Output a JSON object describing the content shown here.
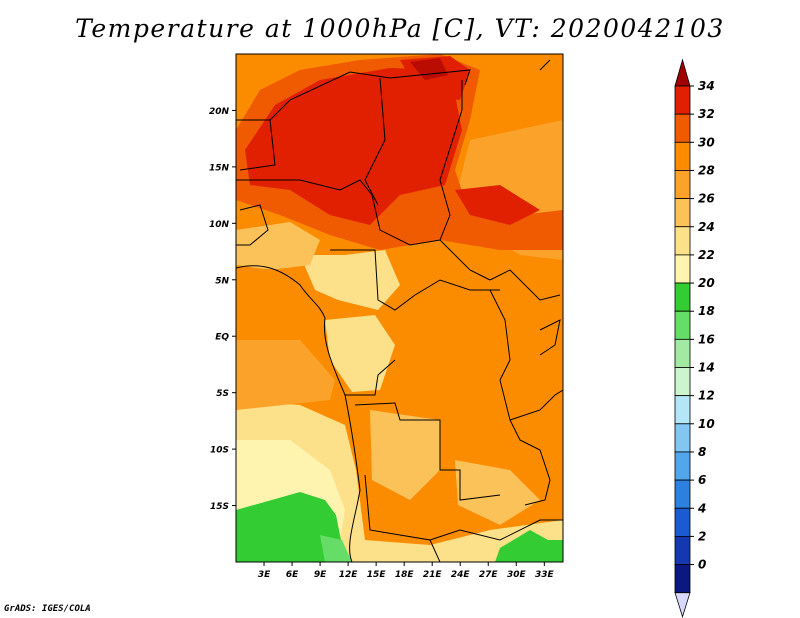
{
  "title": "Temperature at 1000hPa [C], VT: 2020042103",
  "credit": "GrADS: IGES/COLA",
  "map": {
    "lat_labels": [
      "20N",
      "15N",
      "10N",
      "5N",
      "EQ",
      "5S",
      "10S",
      "15S"
    ],
    "lon_labels": [
      "3E",
      "6E",
      "9E",
      "12E",
      "15E",
      "18E",
      "21E",
      "24E",
      "27E",
      "30E",
      "33E"
    ],
    "extent": {
      "lon": [
        0,
        35
      ],
      "lat": [
        -20,
        25
      ]
    }
  },
  "colorbar": {
    "labels": [
      "34",
      "32",
      "30",
      "28",
      "26",
      "24",
      "22",
      "20",
      "18",
      "16",
      "14",
      "12",
      "10",
      "8",
      "6",
      "4",
      "2",
      "0"
    ],
    "colors": [
      "#a00000",
      "#e02000",
      "#f05a00",
      "#fb8c00",
      "#fba22a",
      "#fbc25a",
      "#fde08a",
      "#fff3b0",
      "#33cc33",
      "#66dd66",
      "#a2eaa2",
      "#cdf5cd",
      "#b3e6f7",
      "#83c6f2",
      "#54a6ea",
      "#2d80de",
      "#1b5ad0",
      "#1438b0",
      "#0a1880",
      "#d8d8ff"
    ]
  }
}
